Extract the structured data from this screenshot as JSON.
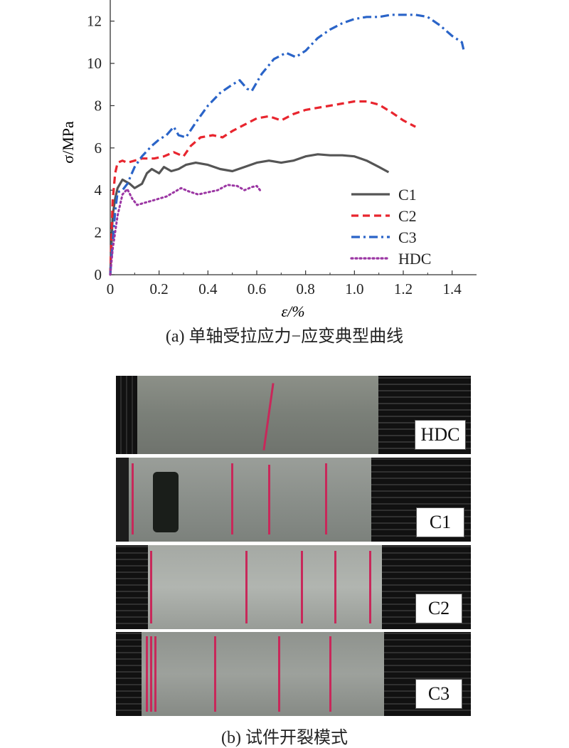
{
  "chart_data": {
    "type": "line",
    "xlabel": "ε/%",
    "ylabel": "σ/MPa",
    "xlim": [
      0,
      1.5
    ],
    "ylim": [
      0,
      13
    ],
    "xticks": [
      "0",
      "0.2",
      "0.4",
      "0.6",
      "0.8",
      "1.0",
      "1.2",
      "1.4"
    ],
    "yticks": [
      "0",
      "2",
      "4",
      "6",
      "8",
      "10",
      "12"
    ],
    "legend_position": "lower-right",
    "series": [
      {
        "name": "C1",
        "color": "#555555",
        "dash": "solid",
        "points": [
          [
            0,
            0
          ],
          [
            0.01,
            2.8
          ],
          [
            0.02,
            3.6
          ],
          [
            0.03,
            4.1
          ],
          [
            0.05,
            4.5
          ],
          [
            0.08,
            4.3
          ],
          [
            0.1,
            4.1
          ],
          [
            0.13,
            4.3
          ],
          [
            0.15,
            4.8
          ],
          [
            0.17,
            5.0
          ],
          [
            0.2,
            4.8
          ],
          [
            0.22,
            5.1
          ],
          [
            0.25,
            4.9
          ],
          [
            0.28,
            5.0
          ],
          [
            0.31,
            5.2
          ],
          [
            0.35,
            5.3
          ],
          [
            0.4,
            5.2
          ],
          [
            0.45,
            5.0
          ],
          [
            0.5,
            4.9
          ],
          [
            0.55,
            5.1
          ],
          [
            0.6,
            5.3
          ],
          [
            0.65,
            5.4
          ],
          [
            0.7,
            5.3
          ],
          [
            0.75,
            5.4
          ],
          [
            0.8,
            5.6
          ],
          [
            0.85,
            5.7
          ],
          [
            0.9,
            5.65
          ],
          [
            0.95,
            5.65
          ],
          [
            1.0,
            5.6
          ],
          [
            1.05,
            5.4
          ],
          [
            1.1,
            5.1
          ],
          [
            1.14,
            4.85
          ]
        ]
      },
      {
        "name": "C2",
        "color": "#e8252e",
        "dash": "dashed",
        "points": [
          [
            0,
            0
          ],
          [
            0.01,
            3.5
          ],
          [
            0.02,
            4.8
          ],
          [
            0.03,
            5.3
          ],
          [
            0.05,
            5.4
          ],
          [
            0.07,
            5.3
          ],
          [
            0.1,
            5.4
          ],
          [
            0.13,
            5.5
          ],
          [
            0.18,
            5.5
          ],
          [
            0.22,
            5.6
          ],
          [
            0.26,
            5.8
          ],
          [
            0.3,
            5.6
          ],
          [
            0.33,
            6.1
          ],
          [
            0.37,
            6.5
          ],
          [
            0.42,
            6.6
          ],
          [
            0.46,
            6.5
          ],
          [
            0.5,
            6.8
          ],
          [
            0.55,
            7.1
          ],
          [
            0.6,
            7.4
          ],
          [
            0.65,
            7.5
          ],
          [
            0.7,
            7.3
          ],
          [
            0.75,
            7.6
          ],
          [
            0.8,
            7.8
          ],
          [
            0.85,
            7.9
          ],
          [
            0.9,
            8.0
          ],
          [
            0.95,
            8.1
          ],
          [
            1.0,
            8.2
          ],
          [
            1.05,
            8.2
          ],
          [
            1.1,
            8.05
          ],
          [
            1.15,
            7.7
          ],
          [
            1.2,
            7.3
          ],
          [
            1.25,
            7.0
          ]
        ]
      },
      {
        "name": "C3",
        "color": "#2a64c8",
        "dash": "dashdot",
        "points": [
          [
            0,
            0
          ],
          [
            0.01,
            1.5
          ],
          [
            0.02,
            3.0
          ],
          [
            0.03,
            3.9
          ],
          [
            0.05,
            4.0
          ],
          [
            0.07,
            4.3
          ],
          [
            0.1,
            5.1
          ],
          [
            0.13,
            5.6
          ],
          [
            0.17,
            6.1
          ],
          [
            0.2,
            6.4
          ],
          [
            0.23,
            6.6
          ],
          [
            0.26,
            7.0
          ],
          [
            0.28,
            6.6
          ],
          [
            0.31,
            6.5
          ],
          [
            0.35,
            7.2
          ],
          [
            0.4,
            8.0
          ],
          [
            0.45,
            8.6
          ],
          [
            0.5,
            9.0
          ],
          [
            0.53,
            9.2
          ],
          [
            0.56,
            8.8
          ],
          [
            0.58,
            8.7
          ],
          [
            0.62,
            9.5
          ],
          [
            0.67,
            10.2
          ],
          [
            0.72,
            10.5
          ],
          [
            0.76,
            10.3
          ],
          [
            0.8,
            10.6
          ],
          [
            0.85,
            11.2
          ],
          [
            0.9,
            11.6
          ],
          [
            0.95,
            11.9
          ],
          [
            1.0,
            12.1
          ],
          [
            1.05,
            12.2
          ],
          [
            1.1,
            12.2
          ],
          [
            1.15,
            12.3
          ],
          [
            1.2,
            12.3
          ],
          [
            1.25,
            12.3
          ],
          [
            1.3,
            12.2
          ],
          [
            1.35,
            11.8
          ],
          [
            1.4,
            11.3
          ],
          [
            1.44,
            11.0
          ],
          [
            1.45,
            10.5
          ]
        ]
      },
      {
        "name": "HDC",
        "color": "#9b36a3",
        "dash": "dotted",
        "points": [
          [
            0,
            0
          ],
          [
            0.01,
            1.2
          ],
          [
            0.03,
            2.8
          ],
          [
            0.05,
            3.8
          ],
          [
            0.07,
            4.05
          ],
          [
            0.09,
            3.6
          ],
          [
            0.11,
            3.3
          ],
          [
            0.14,
            3.4
          ],
          [
            0.17,
            3.5
          ],
          [
            0.2,
            3.6
          ],
          [
            0.23,
            3.7
          ],
          [
            0.26,
            3.9
          ],
          [
            0.29,
            4.1
          ],
          [
            0.32,
            3.95
          ],
          [
            0.36,
            3.8
          ],
          [
            0.4,
            3.9
          ],
          [
            0.44,
            4.0
          ],
          [
            0.48,
            4.25
          ],
          [
            0.52,
            4.2
          ],
          [
            0.55,
            4.0
          ],
          [
            0.58,
            4.15
          ],
          [
            0.6,
            4.2
          ],
          [
            0.62,
            3.9
          ]
        ]
      }
    ]
  },
  "captions": {
    "a": "(a) 单轴受拉应力−应变典型曲线",
    "b": "(b) 试件开裂模式"
  },
  "photos": [
    {
      "label": "HDC"
    },
    {
      "label": "C1"
    },
    {
      "label": "C2"
    },
    {
      "label": "C3"
    }
  ]
}
